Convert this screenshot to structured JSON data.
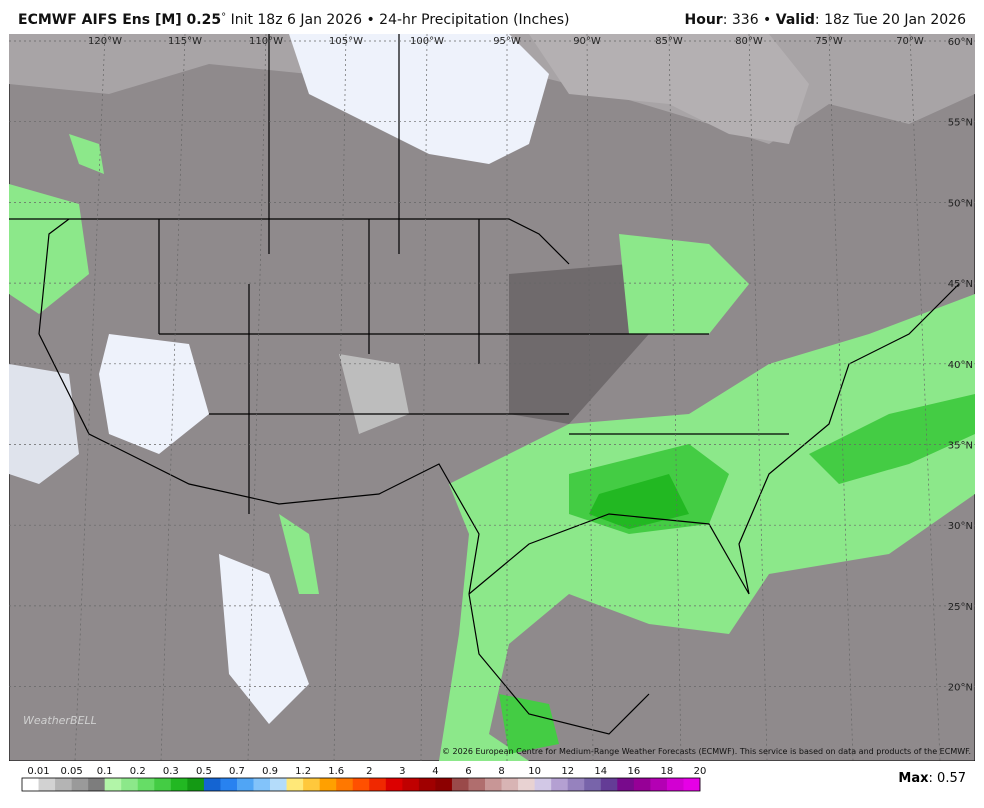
{
  "header": {
    "title": "ECMWF AIFS Ens [M] 0.25",
    "degree": "°",
    "subtitle": "Init 18z 6 Jan 2026 • 24-hr Precipitation (Inches)",
    "hour_label": "Hour",
    "hour_value": ": 336 •",
    "valid_label": "Valid",
    "valid_value": ": 18z Tue 20 Jan 2026"
  },
  "map": {
    "longitude_labels": [
      "120°W",
      "115°W",
      "110°W",
      "105°W",
      "100°W",
      "95°W",
      "90°W",
      "85°W",
      "80°W",
      "75°W",
      "70°W"
    ],
    "latitude_labels": [
      "60°N",
      "55°N",
      "50°N",
      "45°N",
      "40°N",
      "35°N",
      "30°N",
      "25°N",
      "20°N"
    ],
    "watermark": "WeatherBELL",
    "copyright": "© 2026 European Centre for Medium-Range Weather Forecasts (ECMWF). This service is based on data and products of the ECMWF."
  },
  "colorbar": {
    "labels": [
      "0.01",
      "0.05",
      "0.1",
      "0.2",
      "0.3",
      "0.5",
      "0.7",
      "0.9",
      "1.2",
      "1.6",
      "2",
      "3",
      "4",
      "6",
      "8",
      "10",
      "12",
      "14",
      "16",
      "18",
      "20"
    ],
    "colors": [
      "#ffffff",
      "#d2d2d2",
      "#b4b4b4",
      "#9a9a9a",
      "#7d7d7d",
      "#b2f5a8",
      "#8ce88a",
      "#66dd66",
      "#44cc44",
      "#22b822",
      "#149a14",
      "#1464d2",
      "#2882f0",
      "#50a5f5",
      "#82c3fa",
      "#b4dcfa",
      "#ffe878",
      "#ffc83c",
      "#ffa000",
      "#ff7800",
      "#ff5000",
      "#f02800",
      "#dc0000",
      "#c00000",
      "#a00000",
      "#8c0000",
      "#9a4a4a",
      "#b06e6e",
      "#c89696",
      "#d8b4b4",
      "#e8d2d2",
      "#d2c8e6",
      "#b4a0d2",
      "#9682be",
      "#7864aa",
      "#643c96",
      "#780a8c",
      "#960096",
      "#b400b4",
      "#d200d2",
      "#e600e6"
    ]
  },
  "footer": {
    "max_label": "Max",
    "max_value": ": 0.57"
  }
}
